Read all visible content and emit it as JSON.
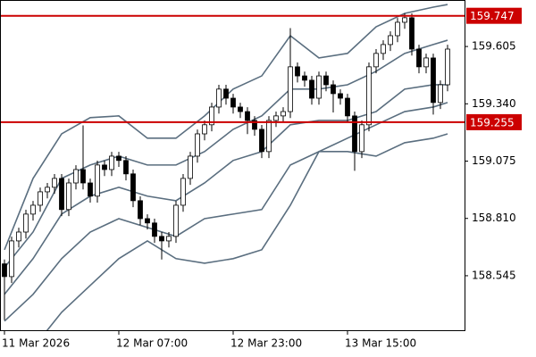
{
  "chart_data": {
    "type": "candlestick",
    "open": [
      158.6,
      158.541,
      158.706,
      158.747,
      158.83,
      158.871,
      158.933,
      158.954,
      158.995,
      158.851,
      158.974,
      159.036,
      158.974,
      158.913,
      159.057,
      159.036,
      159.098,
      159.078,
      159.016,
      158.892,
      158.809,
      158.789,
      158.727,
      158.706,
      158.727,
      158.871,
      158.995,
      159.098,
      159.201,
      159.243,
      159.325,
      159.408,
      159.366,
      159.325,
      159.304,
      159.263,
      159.222,
      159.119,
      159.263,
      159.284,
      159.304,
      159.511,
      159.469,
      159.449,
      159.366,
      159.469,
      159.428,
      159.387,
      159.366,
      159.284,
      159.119,
      159.243,
      159.511,
      159.573,
      159.614,
      159.655,
      159.717,
      159.738,
      159.593,
      159.511,
      159.552,
      159.346,
      159.428
    ],
    "high": [
      158.62,
      158.726,
      158.767,
      158.85,
      158.891,
      158.953,
      158.974,
      159.015,
      159.015,
      158.994,
      159.056,
      159.24,
      158.994,
      159.077,
      159.077,
      159.118,
      159.118,
      159.098,
      159.036,
      158.912,
      158.829,
      158.809,
      158.747,
      158.747,
      158.891,
      159.015,
      159.118,
      159.221,
      159.263,
      159.345,
      159.428,
      159.428,
      159.386,
      159.345,
      159.324,
      159.283,
      159.242,
      159.283,
      159.304,
      159.324,
      159.69,
      159.531,
      159.489,
      159.469,
      159.489,
      159.489,
      159.448,
      159.407,
      159.386,
      159.304,
      159.263,
      159.531,
      159.593,
      159.634,
      159.675,
      159.737,
      159.758,
      159.758,
      159.613,
      159.572,
      159.572,
      159.448,
      159.613
    ],
    "low": [
      158.34,
      158.511,
      158.676,
      158.717,
      158.8,
      158.841,
      158.903,
      158.924,
      158.821,
      158.821,
      158.944,
      158.944,
      158.883,
      158.883,
      159.006,
      159.006,
      159.048,
      158.986,
      158.862,
      158.779,
      158.759,
      158.697,
      158.62,
      158.676,
      158.697,
      158.841,
      158.965,
      159.068,
      159.171,
      159.213,
      159.295,
      159.336,
      159.295,
      159.274,
      159.2,
      159.192,
      159.089,
      159.089,
      159.233,
      159.254,
      159.274,
      159.439,
      159.419,
      159.336,
      159.336,
      159.398,
      159.3,
      159.336,
      159.254,
      159.03,
      159.089,
      159.213,
      159.481,
      159.543,
      159.584,
      159.625,
      159.687,
      159.563,
      159.481,
      159.481,
      159.29,
      159.316,
      159.398
    ],
    "close": [
      158.541,
      158.706,
      158.747,
      158.83,
      158.871,
      158.933,
      158.954,
      158.995,
      158.851,
      158.974,
      159.036,
      158.974,
      158.913,
      159.057,
      159.036,
      159.098,
      159.078,
      159.016,
      158.892,
      158.809,
      158.789,
      158.727,
      158.706,
      158.727,
      158.871,
      158.995,
      159.098,
      159.201,
      159.243,
      159.325,
      159.408,
      159.366,
      159.325,
      159.304,
      159.263,
      159.222,
      159.119,
      159.263,
      159.284,
      159.304,
      159.511,
      159.469,
      159.449,
      159.366,
      159.469,
      159.428,
      159.387,
      159.366,
      159.284,
      159.119,
      159.243,
      159.511,
      159.573,
      159.614,
      159.655,
      159.717,
      159.738,
      159.593,
      159.511,
      159.552,
      159.346,
      159.428,
      159.593
    ],
    "bands": [
      {
        "color": "#5a6e7f",
        "x": [
          0,
          4,
          8,
          12,
          16,
          20,
          24,
          28,
          32,
          36,
          40,
          44,
          48,
          52,
          56,
          60,
          62
        ],
        "values": [
          158.665,
          158.995,
          159.201,
          159.276,
          159.284,
          159.181,
          159.181,
          159.284,
          159.408,
          159.469,
          159.655,
          159.552,
          159.573,
          159.696,
          159.758,
          159.787,
          159.799
        ]
      },
      {
        "color": "#5a6e7f",
        "x": [
          0,
          4,
          8,
          12,
          16,
          20,
          24,
          28,
          32,
          36,
          40,
          44,
          48,
          52,
          56,
          60,
          62
        ],
        "values": [
          158.583,
          158.747,
          158.995,
          159.057,
          159.098,
          159.057,
          159.057,
          159.119,
          159.222,
          159.284,
          159.408,
          159.408,
          159.428,
          159.49,
          159.573,
          159.614,
          159.634
        ]
      },
      {
        "color": "#5a6e7f",
        "x": [
          0,
          4,
          8,
          12,
          16,
          20,
          24,
          28,
          32,
          36,
          40,
          44,
          48,
          52,
          56,
          60,
          62
        ],
        "values": [
          158.459,
          158.624,
          158.83,
          158.913,
          158.954,
          158.913,
          158.892,
          158.974,
          159.078,
          159.119,
          159.243,
          159.263,
          159.263,
          159.304,
          159.408,
          159.428,
          159.428
        ]
      },
      {
        "color": "#5a6e7f",
        "x": [
          0,
          4,
          8,
          12,
          16,
          20,
          24,
          28,
          32,
          36,
          40,
          44,
          48,
          52,
          56,
          60,
          62
        ],
        "values": [
          158.335,
          158.459,
          158.624,
          158.747,
          158.809,
          158.768,
          158.727,
          158.809,
          158.83,
          158.851,
          159.057,
          159.119,
          159.181,
          159.243,
          159.304,
          159.325,
          159.346
        ]
      },
      {
        "color": "#5a6e7f",
        "x": [
          0,
          4,
          8,
          12,
          16,
          20,
          24,
          28,
          32,
          36,
          40,
          44,
          48,
          52,
          56,
          60,
          62
        ],
        "values": [
          158.088,
          158.211,
          158.376,
          158.5,
          158.624,
          158.706,
          158.624,
          158.603,
          158.624,
          158.665,
          158.871,
          159.119,
          159.119,
          159.098,
          159.16,
          159.181,
          159.201
        ]
      }
    ],
    "hlines": [
      {
        "value": 159.747,
        "color": "#cc0000"
      },
      {
        "value": 159.255,
        "color": "#cc0000"
      }
    ],
    "ylim": [
      158.293,
      159.82
    ],
    "yticks": [
      159.605,
      {
        "value": 159.34,
        "label": "159.340"
      },
      159.075,
      {
        "value": 158.81,
        "label": "158.810"
      },
      158.545
    ],
    "xticks": [
      {
        "value": 0,
        "label": "11 Mar 2026"
      },
      {
        "value": 16,
        "label": "12 Mar 07:00"
      },
      {
        "value": 32,
        "label": "12 Mar 23:00"
      },
      {
        "value": 48,
        "label": "13 Mar 15:00"
      }
    ]
  }
}
